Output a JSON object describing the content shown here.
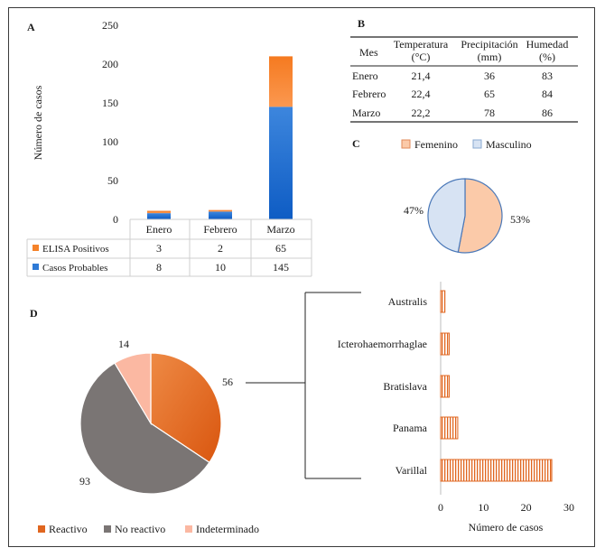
{
  "panels": {
    "a": "A",
    "b": "B",
    "c": "C",
    "d": "D"
  },
  "colors": {
    "elisa": "#f5822a",
    "casos": "#2e7ad6",
    "casos_dark": "#1464c8",
    "femenino": "#fbcaa9",
    "masculino": "#d7e3f3",
    "pie_edge": "#4a78b8",
    "reactivo": "#e0661f",
    "no_reactivo": "#7a7574",
    "indeterminado": "#fbb8a2",
    "serovar_bar": "#e0661f"
  },
  "chart_data": [
    {
      "id": "A",
      "type": "bar",
      "stacked": true,
      "ylabel": "Número de casos",
      "ylim": [
        0,
        250
      ],
      "yticks": [
        0,
        50,
        100,
        150,
        200,
        250
      ],
      "categories": [
        "Enero",
        "Febrero",
        "Marzo"
      ],
      "series": [
        {
          "name": "Casos Probables",
          "values": [
            8,
            10,
            145
          ],
          "legend_icon": "blue-square-icon"
        },
        {
          "name": "ELISA Positivos",
          "values": [
            3,
            2,
            65
          ],
          "legend_icon": "orange-square-icon"
        }
      ],
      "table_rows": [
        {
          "name": "ELISA Positivos",
          "values": [
            "3",
            "2",
            "65"
          ]
        },
        {
          "name": "Casos Probables",
          "values": [
            "8",
            "10",
            "145"
          ]
        }
      ]
    },
    {
      "id": "B",
      "type": "table",
      "columns": [
        {
          "line1": "Mes",
          "line2": ""
        },
        {
          "line1": "Temperatura",
          "line2": "(°C)"
        },
        {
          "line1": "Precipitación",
          "line2": "(mm)"
        },
        {
          "line1": "Humedad",
          "line2": "(%)"
        }
      ],
      "rows": [
        [
          "Enero",
          "21,4",
          "36",
          "83"
        ],
        [
          "Febrero",
          "22,4",
          "65",
          "84"
        ],
        [
          "Marzo",
          "22,2",
          "78",
          "86"
        ]
      ]
    },
    {
      "id": "C",
      "type": "pie",
      "legend": [
        "Femenino",
        "Masculino"
      ],
      "slices": [
        {
          "name": "Femenino",
          "value": 53,
          "label": "53%"
        },
        {
          "name": "Masculino",
          "value": 47,
          "label": "47%"
        }
      ]
    },
    {
      "id": "D-pie",
      "type": "pie",
      "legend": [
        "Reactivo",
        "No  reactivo",
        "Indeterminado"
      ],
      "slices": [
        {
          "name": "Reactivo",
          "value": 56,
          "label": "56"
        },
        {
          "name": "No reactivo",
          "value": 93,
          "label": "93"
        },
        {
          "name": "Indeterminado",
          "value": 14,
          "label": "14"
        }
      ]
    },
    {
      "id": "D-bar",
      "type": "bar",
      "orientation": "horizontal",
      "xlabel": "Número de casos",
      "xlim": [
        0,
        30
      ],
      "xticks": [
        0,
        10,
        20,
        30
      ],
      "categories": [
        "Australis",
        "Icterohaemorrhaglae",
        "Bratislava",
        "Panama",
        "Varillal"
      ],
      "values": [
        1,
        2,
        2,
        4,
        26
      ]
    }
  ]
}
